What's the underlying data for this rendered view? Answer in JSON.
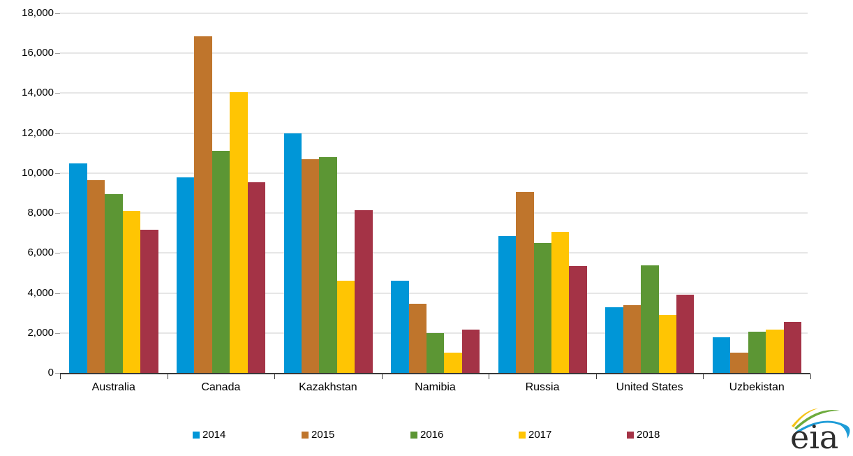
{
  "chart_data": {
    "type": "bar",
    "title": "",
    "categories": [
      "Australia",
      "Canada",
      "Kazakhstan",
      "Namibia",
      "Russia",
      "United States",
      "Uzbekistan"
    ],
    "series": [
      {
        "name": "2014",
        "color": "#0096D7",
        "values": [
          10500,
          9800,
          12000,
          4600,
          6850,
          3300,
          1800
        ]
      },
      {
        "name": "2015",
        "color": "#BF752C",
        "values": [
          9650,
          16850,
          10700,
          3450,
          9050,
          3400,
          1000
        ]
      },
      {
        "name": "2016",
        "color": "#5C9634",
        "values": [
          8950,
          11100,
          10800,
          2000,
          6500,
          5400,
          2050
        ]
      },
      {
        "name": "2017",
        "color": "#FFC503",
        "values": [
          8100,
          14050,
          4600,
          1000,
          7050,
          2900,
          2150
        ]
      },
      {
        "name": "2018",
        "color": "#A43346",
        "values": [
          7150,
          9550,
          8150,
          2150,
          5350,
          3900,
          2550
        ]
      }
    ],
    "xlabel": "",
    "ylabel": "",
    "ylim": [
      0,
      18000
    ],
    "y_tick_step": 2000,
    "y_tick_labels": [
      "0",
      "2,000",
      "4,000",
      "6,000",
      "8,000",
      "10,000",
      "12,000",
      "14,000",
      "16,000",
      "18,000"
    ],
    "grid": true,
    "legend_position": "bottom"
  },
  "legend": {
    "items": [
      "2014",
      "2015",
      "2016",
      "2017",
      "2018"
    ]
  },
  "logo": {
    "text": "eia"
  }
}
